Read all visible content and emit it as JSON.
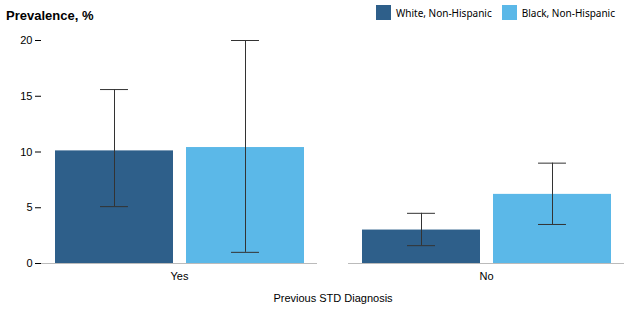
{
  "chart_data": {
    "type": "bar",
    "ylabel": "Prevalence, %",
    "xlabel": "Previous STD Diagnosis",
    "categories": [
      "Yes",
      "No"
    ],
    "series": [
      {
        "name": "White, Non-Hispanic",
        "color": "#2E5F8A",
        "values": [
          10.1,
          3.0
        ],
        "yerr_lower": [
          5.0,
          1.4
        ],
        "yerr_upper": [
          5.5,
          1.5
        ]
      },
      {
        "name": "Black, Non-Hispanic",
        "color": "#5BB8E8",
        "values": [
          10.4,
          6.2
        ],
        "yerr_lower": [
          9.4,
          2.7
        ],
        "yerr_upper": [
          9.6,
          2.8
        ]
      }
    ],
    "ylim": [
      0,
      20
    ],
    "yticks": [
      0,
      5,
      10,
      15,
      20
    ],
    "grid": false,
    "legend": "upper right"
  }
}
